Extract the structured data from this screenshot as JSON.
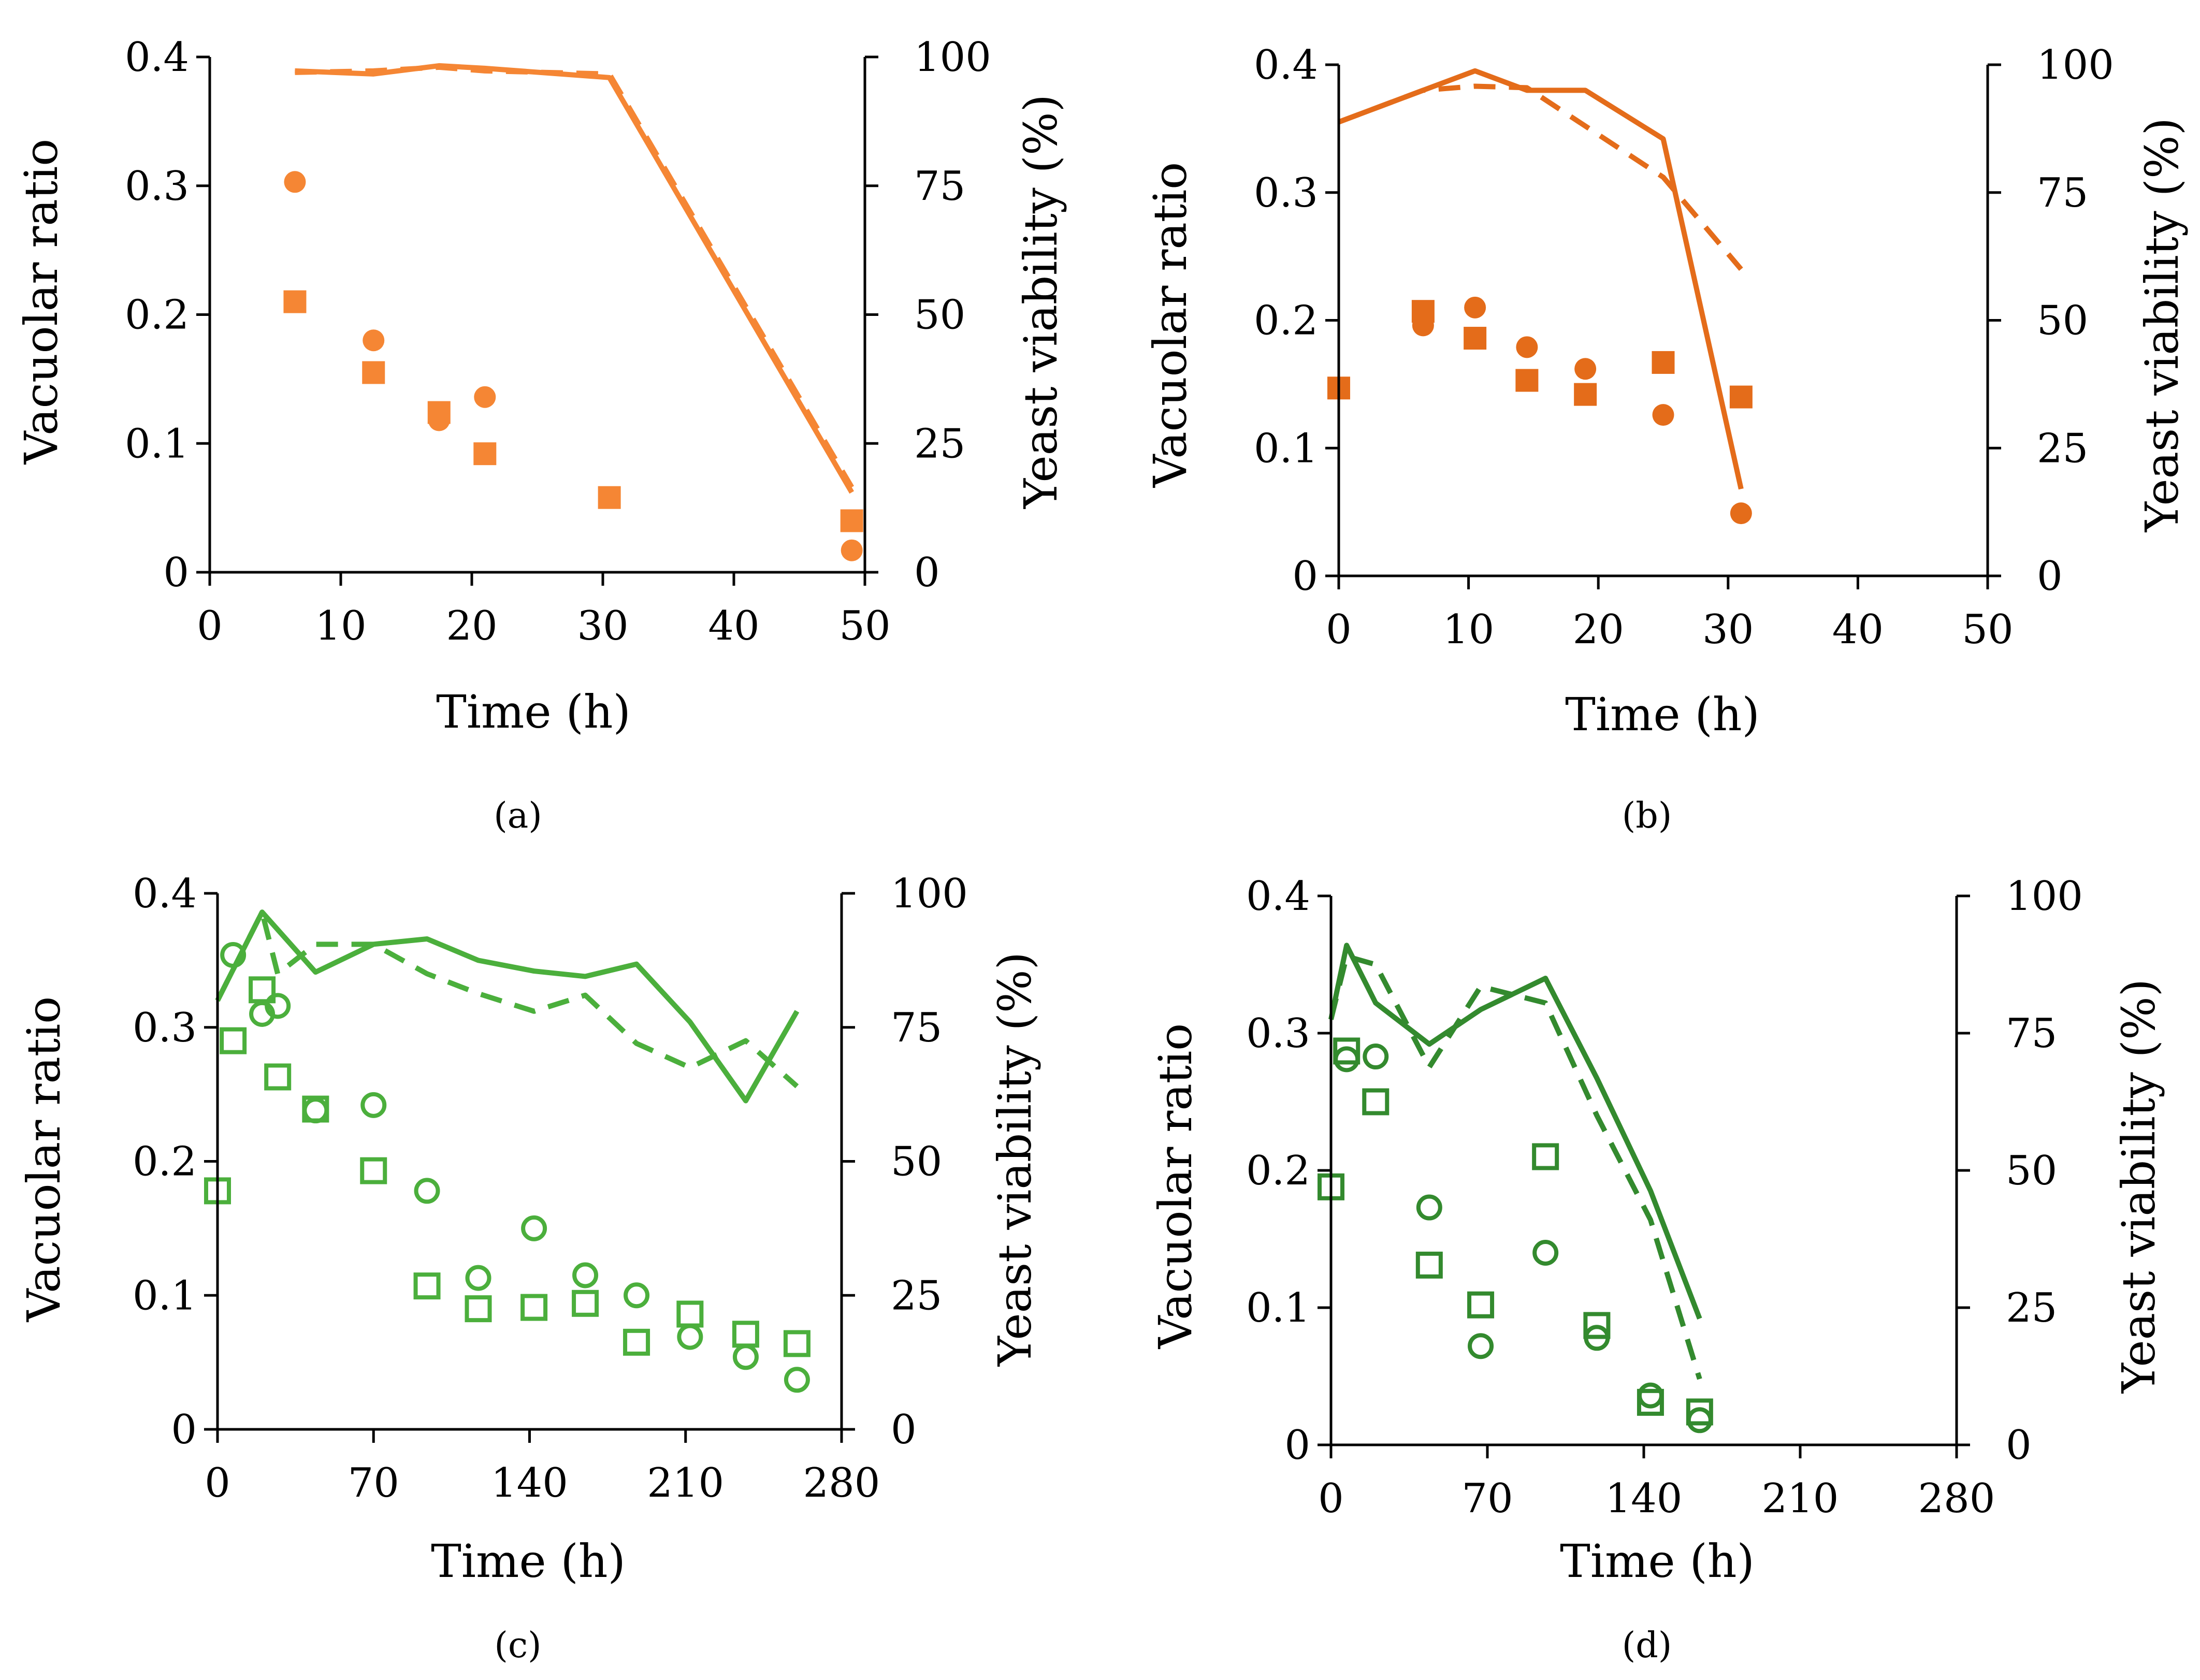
{
  "figure": {
    "panels": [
      {
        "label": "(a)",
        "letter": "a"
      },
      {
        "label": "(b)",
        "letter": "b"
      },
      {
        "label": "(c)",
        "letter": "c"
      },
      {
        "label": "(d)",
        "letter": "d"
      }
    ]
  },
  "chart_data": [
    {
      "panel": "a",
      "type": "scatter+line",
      "color": "#F58634",
      "filled_markers": true,
      "xlabel": "Time (h)",
      "ylabel": "Vacuolar ratio",
      "y2label": "Yeast viability (%)",
      "xlim": [
        0,
        50
      ],
      "xticks": [
        0,
        10,
        20,
        30,
        40,
        50
      ],
      "ylim": [
        0,
        0.4
      ],
      "yticks": [
        "0",
        "0.1",
        "0.2",
        "0.3",
        "0.4"
      ],
      "y2lim": [
        0,
        100
      ],
      "y2ticks": [
        "0",
        "25",
        "50",
        "75",
        "100"
      ],
      "series": [
        {
          "name": "Vacuolar ratio (circle)",
          "axis": "left",
          "marker": "circle",
          "x": [
            6.5,
            12.5,
            17.5,
            21,
            49
          ],
          "y": [
            0.303,
            0.18,
            0.118,
            0.136,
            0.017
          ]
        },
        {
          "name": "Vacuolar ratio (square)",
          "axis": "left",
          "marker": "square",
          "x": [
            6.5,
            12.5,
            17.5,
            21,
            30.5,
            49
          ],
          "y": [
            0.21,
            0.155,
            0.124,
            0.092,
            0.058,
            0.04
          ]
        },
        {
          "name": "Yeast viability (solid)",
          "axis": "right",
          "style": "solid",
          "x": [
            6.5,
            12.5,
            17.5,
            21,
            30.5,
            49
          ],
          "y": [
            97.3,
            96.7,
            98.3,
            97.8,
            96.0,
            15.5
          ]
        },
        {
          "name": "Yeast viability (dashed)",
          "axis": "right",
          "style": "dashed",
          "x": [
            6.5,
            12.5,
            17.5,
            21,
            30.5,
            49
          ],
          "y": [
            97.0,
            97.3,
            98.0,
            97.3,
            96.7,
            16.5
          ]
        }
      ]
    },
    {
      "panel": "b",
      "type": "scatter+line",
      "color": "#E46C1A",
      "filled_markers": true,
      "xlabel": "Time (h)",
      "ylabel": "Vacuolar ratio",
      "y2label": "Yeast viability (%)",
      "xlim": [
        0,
        50
      ],
      "xticks": [
        0,
        10,
        20,
        30,
        40,
        50
      ],
      "ylim": [
        0,
        0.4
      ],
      "yticks": [
        "0",
        "0.1",
        "0.2",
        "0.3",
        "0.4"
      ],
      "y2lim": [
        0,
        100
      ],
      "y2ticks": [
        "0",
        "25",
        "50",
        "75",
        "100"
      ],
      "series": [
        {
          "name": "Vacuolar ratio (circle)",
          "axis": "left",
          "marker": "circle",
          "x": [
            6.5,
            10.5,
            14.5,
            19,
            25,
            31
          ],
          "y": [
            0.196,
            0.21,
            0.179,
            0.162,
            0.126,
            0.049
          ]
        },
        {
          "name": "Vacuolar ratio (square)",
          "axis": "left",
          "marker": "square",
          "x": [
            0,
            6.5,
            10.5,
            14.5,
            19,
            25,
            31
          ],
          "y": [
            0.147,
            0.207,
            0.186,
            0.153,
            0.142,
            0.167,
            0.14
          ]
        },
        {
          "name": "Yeast viability (solid)",
          "axis": "right",
          "style": "solid",
          "x": [
            0,
            6.5,
            10.5,
            14.5,
            19,
            25,
            31
          ],
          "y": [
            88.8,
            95.0,
            98.8,
            95.0,
            95.0,
            85.5,
            17.0
          ]
        },
        {
          "name": "Yeast viability (dashed)",
          "axis": "right",
          "style": "dashed",
          "x": [
            0,
            6.5,
            10.5,
            14.5,
            19,
            25,
            31
          ],
          "y": [
            88.8,
            95.0,
            95.8,
            95.5,
            88.0,
            78.0,
            60.0
          ]
        }
      ]
    },
    {
      "panel": "c",
      "type": "scatter+line",
      "color": "#4BAF3C",
      "filled_markers": false,
      "xlabel": "Time (h)",
      "ylabel": "Vacuolar ratio",
      "y2label": "Yeast viability (%)",
      "xlim": [
        0,
        280
      ],
      "xticks": [
        0,
        70,
        140,
        210,
        280
      ],
      "ylim": [
        0,
        0.4
      ],
      "yticks": [
        "0",
        "0.1",
        "0.2",
        "0.3",
        "0.4"
      ],
      "y2lim": [
        0,
        100
      ],
      "y2ticks": [
        "0",
        "25",
        "50",
        "75",
        "100"
      ],
      "series": [
        {
          "name": "Vacuolar ratio (circle)",
          "axis": "left",
          "marker": "circle",
          "x": [
            7,
            20,
            27,
            44,
            70,
            94,
            117,
            142,
            165,
            188,
            212,
            237,
            260
          ],
          "y": [
            0.354,
            0.31,
            0.316,
            0.238,
            0.242,
            0.178,
            0.113,
            0.15,
            0.115,
            0.1,
            0.069,
            0.054,
            0.037
          ]
        },
        {
          "name": "Vacuolar ratio (square)",
          "axis": "left",
          "marker": "square",
          "x": [
            0,
            7,
            20,
            27,
            44,
            70,
            94,
            117,
            142,
            165,
            188,
            212,
            237,
            260
          ],
          "y": [
            0.178,
            0.29,
            0.328,
            0.263,
            0.239,
            0.193,
            0.107,
            0.09,
            0.091,
            0.094,
            0.065,
            0.086,
            0.071,
            0.064
          ]
        },
        {
          "name": "Yeast viability (solid)",
          "axis": "right",
          "style": "solid",
          "x": [
            0,
            20,
            44,
            70,
            94,
            117,
            142,
            165,
            188,
            212,
            237,
            260
          ],
          "y": [
            80.0,
            96.5,
            85.3,
            90.5,
            91.5,
            87.5,
            85.5,
            84.5,
            86.8,
            76.0,
            61.3,
            78.0
          ]
        },
        {
          "name": "Yeast viability (dashed)",
          "axis": "right",
          "style": "dashed",
          "x": [
            0,
            20,
            27,
            44,
            70,
            94,
            117,
            142,
            165,
            188,
            212,
            237,
            260
          ],
          "y": [
            80.0,
            96.5,
            85.0,
            90.5,
            90.5,
            85.0,
            81.3,
            78.0,
            81.0,
            72.0,
            67.5,
            72.5,
            64.0
          ]
        }
      ]
    },
    {
      "panel": "d",
      "type": "scatter+line",
      "color": "#338A2E",
      "filled_markers": false,
      "xlabel": "Time (h)",
      "ylabel": "Vacuolar ratio",
      "y2label": "Yeast viability (%)",
      "xlim": [
        0,
        280
      ],
      "xticks": [
        0,
        70,
        140,
        210,
        280
      ],
      "ylim": [
        0,
        0.4
      ],
      "yticks": [
        "0",
        "0.1",
        "0.2",
        "0.3",
        "0.4"
      ],
      "y2lim": [
        0,
        100
      ],
      "y2ticks": [
        "0",
        "25",
        "50",
        "75",
        "100"
      ],
      "series": [
        {
          "name": "Vacuolar ratio (circle)",
          "axis": "left",
          "marker": "circle",
          "x": [
            7,
            20,
            44,
            67,
            96,
            119,
            143,
            165
          ],
          "y": [
            0.281,
            0.283,
            0.173,
            0.072,
            0.14,
            0.078,
            0.036,
            0.018
          ]
        },
        {
          "name": "Vacuolar ratio (square)",
          "axis": "left",
          "marker": "square",
          "x": [
            0,
            7,
            20,
            44,
            67,
            96,
            119,
            143,
            165
          ],
          "y": [
            0.188,
            0.287,
            0.25,
            0.131,
            0.102,
            0.21,
            0.087,
            0.031,
            0.024
          ]
        },
        {
          "name": "Yeast viability (solid)",
          "axis": "right",
          "style": "solid",
          "x": [
            0,
            7,
            20,
            44,
            67,
            96,
            119,
            143,
            165
          ],
          "y": [
            77.5,
            91.0,
            80.5,
            73.0,
            79.3,
            85.0,
            66.8,
            46.3,
            23.0
          ]
        },
        {
          "name": "Yeast viability (dashed)",
          "axis": "right",
          "style": "dashed",
          "x": [
            0,
            7,
            20,
            44,
            67,
            96,
            119,
            143,
            165
          ],
          "y": [
            77.5,
            89.0,
            87.5,
            68.8,
            83.5,
            80.5,
            60.0,
            41.0,
            12.0
          ]
        }
      ]
    }
  ]
}
